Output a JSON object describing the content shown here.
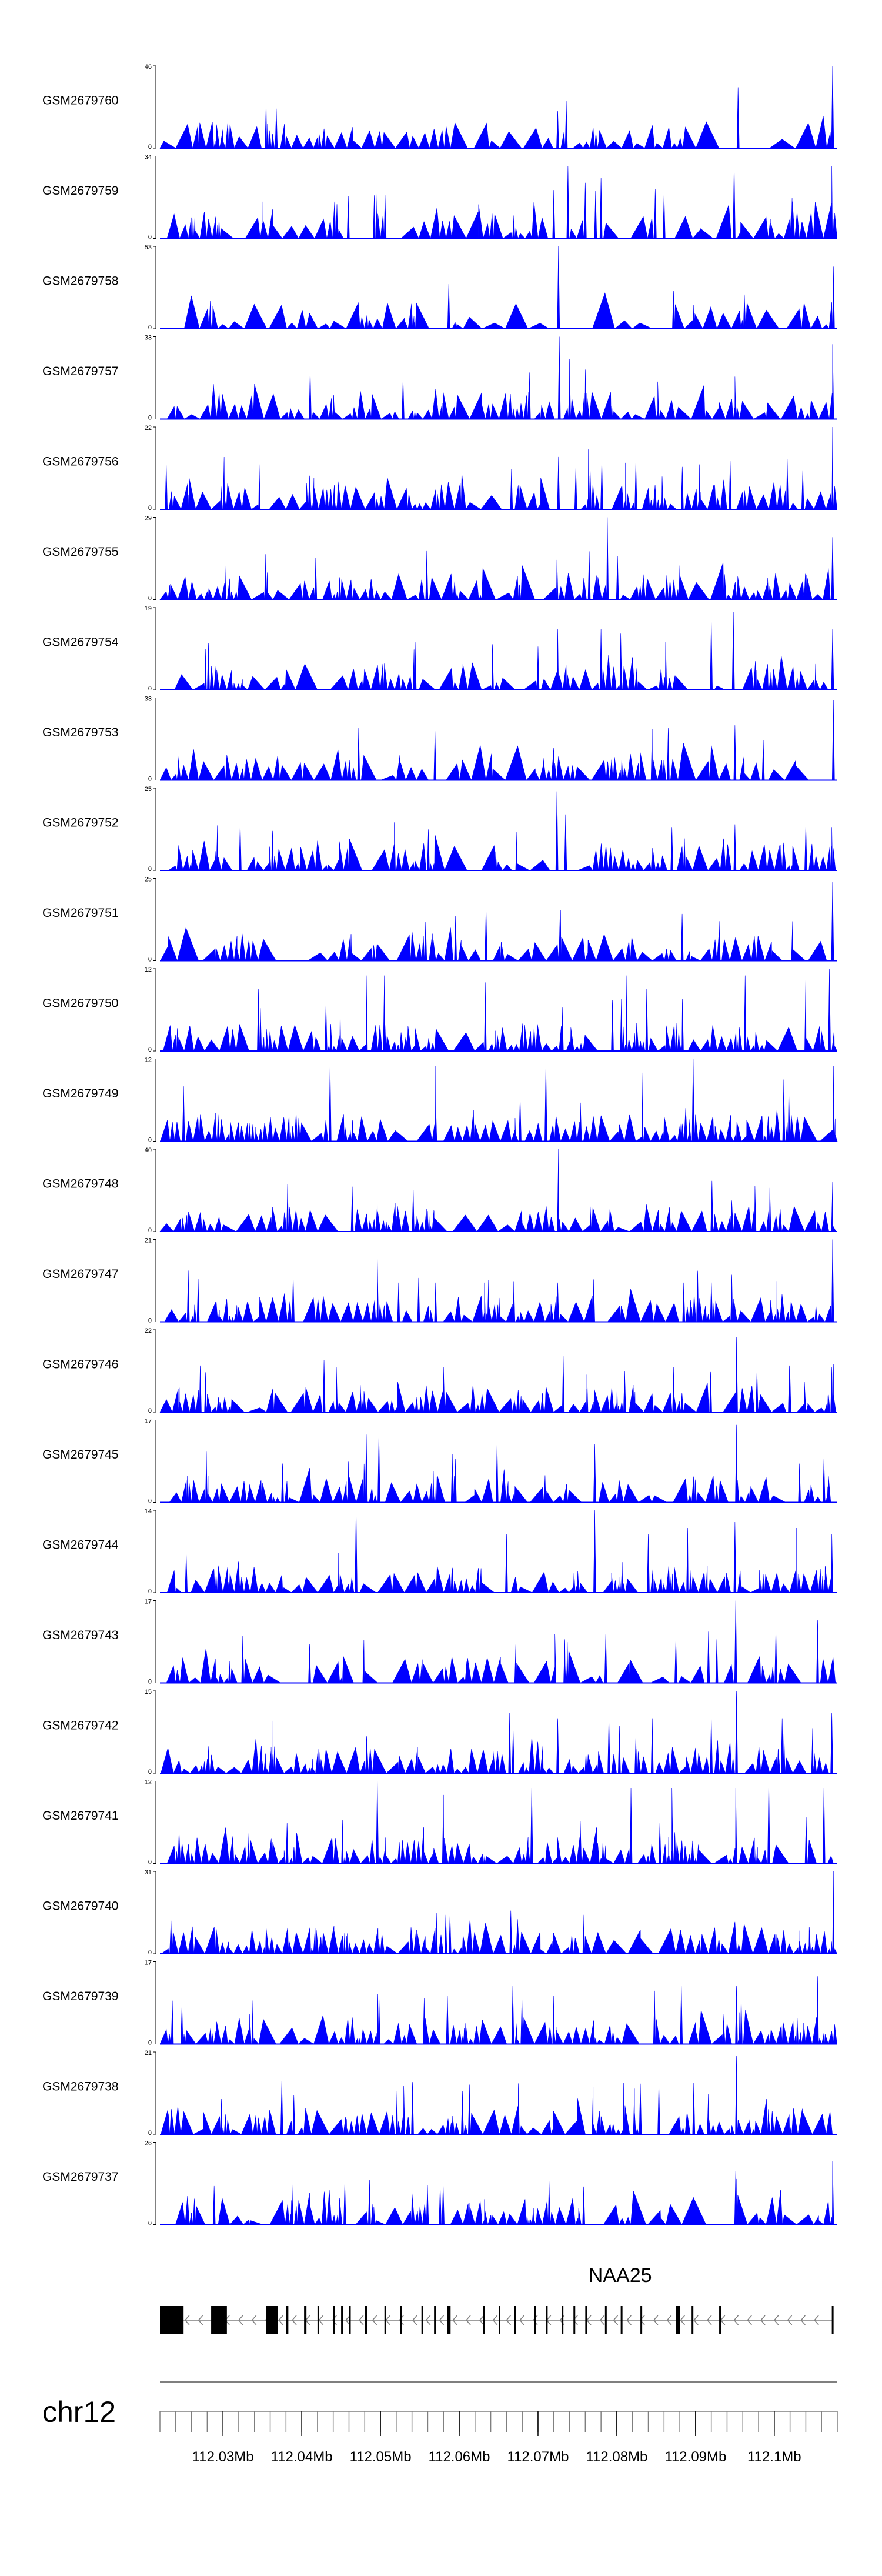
{
  "chart_data": {
    "type": "area",
    "title": "",
    "chromosome": "chr12",
    "xlim_bp": [
      112022000,
      112108000
    ],
    "x_ticks": [
      {
        "pos_bp": 112030000,
        "label": "112.03Mb"
      },
      {
        "pos_bp": 112040000,
        "label": "112.04Mb"
      },
      {
        "pos_bp": 112050000,
        "label": "112.05Mb"
      },
      {
        "pos_bp": 112060000,
        "label": "112.06Mb"
      },
      {
        "pos_bp": 112070000,
        "label": "112.07Mb"
      },
      {
        "pos_bp": 112080000,
        "label": "112.08Mb"
      },
      {
        "pos_bp": 112090000,
        "label": "112.09Mb"
      },
      {
        "pos_bp": 112100000,
        "label": "112.1Mb"
      }
    ],
    "minor_tick_step_bp": 2000,
    "gene": {
      "name": "NAA25",
      "strand": "-",
      "start_bp": 112022000,
      "end_bp": 112107500,
      "exons": [
        [
          112022000,
          112025000
        ],
        [
          112028500,
          112030500
        ],
        [
          112035500,
          112037000
        ],
        [
          112038000,
          112038300
        ],
        [
          112040300,
          112040600
        ],
        [
          112042000,
          112042200
        ],
        [
          112044000,
          112044200
        ],
        [
          112045000,
          112045200
        ],
        [
          112046000,
          112046200
        ],
        [
          112048000,
          112048300
        ],
        [
          112050500,
          112050700
        ],
        [
          112052500,
          112052700
        ],
        [
          112055200,
          112055400
        ],
        [
          112056800,
          112057000
        ],
        [
          112058500,
          112058900
        ],
        [
          112063000,
          112063200
        ],
        [
          112065000,
          112065200
        ],
        [
          112067000,
          112067200
        ],
        [
          112069500,
          112069700
        ],
        [
          112071000,
          112071200
        ],
        [
          112073000,
          112073200
        ],
        [
          112074500,
          112074700
        ],
        [
          112076000,
          112076200
        ],
        [
          112078500,
          112078700
        ],
        [
          112080500,
          112080700
        ],
        [
          112083000,
          112083200
        ],
        [
          112087500,
          112088000
        ],
        [
          112089500,
          112089700
        ],
        [
          112093000,
          112093200
        ],
        [
          112107300,
          112107500
        ]
      ]
    },
    "series": [
      {
        "name": "GSM2679760",
        "ymax": 46,
        "ymin": 0,
        "seed": 11,
        "n_peaks": 70,
        "peaks": [
          [
            112022500,
            4
          ],
          [
            112032000,
            6
          ],
          [
            112034300,
            12
          ],
          [
            112036300,
            8
          ],
          [
            112072500,
            21
          ],
          [
            112073300,
            9
          ],
          [
            112077800,
            10
          ],
          [
            112095400,
            34
          ],
          [
            112101000,
            5
          ],
          [
            112107400,
            46
          ]
        ]
      },
      {
        "name": "GSM2679759",
        "ymax": 34,
        "ymin": 0,
        "seed": 23,
        "n_peaks": 85,
        "peaks": [
          [
            112023800,
            10
          ],
          [
            112029500,
            8
          ],
          [
            112036300,
            12
          ],
          [
            112064500,
            10
          ],
          [
            112072000,
            20
          ],
          [
            112073800,
            30
          ],
          [
            112076000,
            23
          ],
          [
            112078000,
            25
          ],
          [
            112086000,
            18
          ],
          [
            112094900,
            30
          ],
          [
            112105200,
            15
          ],
          [
            112107300,
            30
          ]
        ]
      },
      {
        "name": "GSM2679758",
        "ymax": 53,
        "ymin": 0,
        "seed": 37,
        "n_peaks": 55,
        "peaks": [
          [
            112028400,
            18
          ],
          [
            112041000,
            10
          ],
          [
            112072600,
            53
          ],
          [
            112078500,
            23
          ],
          [
            112093500,
            10
          ],
          [
            112096200,
            22
          ],
          [
            112099000,
            12
          ],
          [
            112107500,
            40
          ]
        ]
      },
      {
        "name": "GSM2679757",
        "ymax": 33,
        "ymin": 0,
        "seed": 41,
        "n_peaks": 95,
        "peaks": [
          [
            112028800,
            14
          ],
          [
            112036400,
            10
          ],
          [
            112057000,
            12
          ],
          [
            112066500,
            10
          ],
          [
            112072700,
            33
          ],
          [
            112074000,
            24
          ],
          [
            112085200,
            15
          ],
          [
            112095000,
            17
          ],
          [
            112107400,
            30
          ]
        ]
      },
      {
        "name": "GSM2679756",
        "ymax": 22,
        "ymin": 0,
        "seed": 53,
        "n_peaks": 110,
        "peaks": [
          [
            112022800,
            12
          ],
          [
            112034600,
            12
          ],
          [
            112041000,
            9
          ],
          [
            112072600,
            14
          ],
          [
            112074800,
            11
          ],
          [
            112076400,
            16
          ],
          [
            112078100,
            13
          ],
          [
            112090500,
            12
          ],
          [
            112094400,
            13
          ],
          [
            112107400,
            22
          ]
        ]
      },
      {
        "name": "GSM2679755",
        "ymax": 29,
        "ymin": 0,
        "seed": 67,
        "n_peaks": 100,
        "peaks": [
          [
            112025200,
            8
          ],
          [
            112052300,
            9
          ],
          [
            112063000,
            11
          ],
          [
            112068000,
            12
          ],
          [
            112072400,
            14
          ],
          [
            112076500,
            17
          ],
          [
            112078800,
            29
          ],
          [
            112088000,
            12
          ],
          [
            112093500,
            13
          ],
          [
            112107400,
            22
          ]
        ]
      },
      {
        "name": "GSM2679754",
        "ymax": 19,
        "ymin": 0,
        "seed": 71,
        "n_peaks": 90,
        "peaks": [
          [
            112054400,
            11
          ],
          [
            112070000,
            10
          ],
          [
            112072500,
            14
          ],
          [
            112078000,
            14
          ],
          [
            112080500,
            13
          ],
          [
            112086200,
            11
          ],
          [
            112092000,
            16
          ],
          [
            112094800,
            18
          ],
          [
            112107400,
            14
          ]
        ]
      },
      {
        "name": "GSM2679753",
        "ymax": 33,
        "ymin": 0,
        "seed": 83,
        "n_peaks": 80,
        "peaks": [
          [
            112022800,
            5
          ],
          [
            112025000,
            6
          ],
          [
            112037500,
            6
          ],
          [
            112060400,
            8
          ],
          [
            112072000,
            13
          ],
          [
            112078400,
            8
          ],
          [
            112092000,
            14
          ],
          [
            112095000,
            22
          ],
          [
            112098600,
            16
          ],
          [
            112107500,
            32
          ]
        ]
      },
      {
        "name": "GSM2679752",
        "ymax": 25,
        "ymin": 0,
        "seed": 97,
        "n_peaks": 95,
        "peaks": [
          [
            112036300,
            12
          ],
          [
            112042000,
            9
          ],
          [
            112056900,
            11
          ],
          [
            112072400,
            24
          ],
          [
            112073500,
            17
          ],
          [
            112087000,
            13
          ],
          [
            112095000,
            14
          ],
          [
            112104000,
            14
          ],
          [
            112107300,
            13
          ]
        ]
      },
      {
        "name": "GSM2679751",
        "ymax": 25,
        "ymin": 0,
        "seed": 101,
        "n_peaks": 75,
        "peaks": [
          [
            112025300,
            10
          ],
          [
            112033800,
            6
          ],
          [
            112054000,
            9
          ],
          [
            112058900,
            10
          ],
          [
            112072800,
            14
          ],
          [
            112078400,
            8
          ],
          [
            112093000,
            12
          ],
          [
            112107400,
            24
          ]
        ]
      },
      {
        "name": "GSM2679750",
        "ymax": 12,
        "ymin": 0,
        "seed": 109,
        "n_peaks": 120,
        "peaks": [
          [
            112034500,
            9
          ],
          [
            112048200,
            11
          ],
          [
            112050500,
            11
          ],
          [
            112063300,
            10
          ],
          [
            112081200,
            11
          ],
          [
            112083800,
            9
          ],
          [
            112096300,
            11
          ],
          [
            112104000,
            11
          ],
          [
            112107000,
            12
          ]
        ]
      },
      {
        "name": "GSM2679749",
        "ymax": 12,
        "ymin": 0,
        "seed": 113,
        "n_peaks": 120,
        "peaks": [
          [
            112025000,
            8
          ],
          [
            112043600,
            11
          ],
          [
            112057000,
            11
          ],
          [
            112071000,
            11
          ],
          [
            112083200,
            10
          ],
          [
            112089700,
            12
          ],
          [
            112101200,
            9
          ],
          [
            112107500,
            11
          ]
        ]
      },
      {
        "name": "GSM2679748",
        "ymax": 40,
        "ymin": 0,
        "seed": 127,
        "n_peaks": 100,
        "peaks": [
          [
            112036300,
            12
          ],
          [
            112043000,
            8
          ],
          [
            112056800,
            10
          ],
          [
            112063700,
            8
          ],
          [
            112072600,
            40
          ],
          [
            112088200,
            10
          ],
          [
            112095000,
            9
          ],
          [
            112107400,
            24
          ]
        ]
      },
      {
        "name": "GSM2679747",
        "ymax": 21,
        "ymin": 0,
        "seed": 131,
        "n_peaks": 110,
        "peaks": [
          [
            112049600,
            16
          ],
          [
            112052300,
            10
          ],
          [
            112057000,
            10
          ],
          [
            112063200,
            10
          ],
          [
            112072500,
            10
          ],
          [
            112088500,
            10
          ],
          [
            112094600,
            12
          ],
          [
            112107400,
            21
          ]
        ]
      },
      {
        "name": "GSM2679746",
        "ymax": 22,
        "ymin": 0,
        "seed": 139,
        "n_peaks": 115,
        "peaks": [
          [
            112044400,
            12
          ],
          [
            112058000,
            12
          ],
          [
            112073200,
            15
          ],
          [
            112076200,
            10
          ],
          [
            112081000,
            11
          ],
          [
            112095200,
            20
          ],
          [
            112097800,
            11
          ],
          [
            112107300,
            12
          ]
        ]
      },
      {
        "name": "GSM2679745",
        "ymax": 17,
        "ymin": 0,
        "seed": 149,
        "n_peaks": 95,
        "peaks": [
          [
            112048200,
            14
          ],
          [
            112049800,
            14
          ],
          [
            112059500,
            9
          ],
          [
            112064800,
            12
          ],
          [
            112077200,
            12
          ],
          [
            112095200,
            16
          ],
          [
            112103200,
            8
          ],
          [
            112106300,
            9
          ]
        ]
      },
      {
        "name": "GSM2679744",
        "ymax": 14,
        "ymin": 0,
        "seed": 151,
        "n_peaks": 115,
        "peaks": [
          [
            112046900,
            14
          ],
          [
            112066000,
            10
          ],
          [
            112077200,
            14
          ],
          [
            112084000,
            10
          ],
          [
            112089000,
            11
          ],
          [
            112095000,
            12
          ],
          [
            112102800,
            11
          ],
          [
            112107300,
            10
          ]
        ]
      },
      {
        "name": "GSM2679743",
        "ymax": 17,
        "ymin": 0,
        "seed": 157,
        "n_peaks": 70,
        "peaks": [
          [
            112041000,
            8
          ],
          [
            112073400,
            9
          ],
          [
            112078600,
            10
          ],
          [
            112087500,
            9
          ],
          [
            112092700,
            9
          ],
          [
            112095100,
            17
          ],
          [
            112100200,
            11
          ],
          [
            112105500,
            13
          ]
        ]
      },
      {
        "name": "GSM2679742",
        "ymax": 15,
        "ymin": 0,
        "seed": 163,
        "n_peaks": 115,
        "peaks": [
          [
            112066400,
            11
          ],
          [
            112072500,
            10
          ],
          [
            112079000,
            10
          ],
          [
            112084500,
            10
          ],
          [
            112092000,
            10
          ],
          [
            112095200,
            15
          ],
          [
            112101000,
            10
          ],
          [
            112107300,
            11
          ]
        ]
      },
      {
        "name": "GSM2679741",
        "ymax": 12,
        "ymin": 0,
        "seed": 167,
        "n_peaks": 120,
        "peaks": [
          [
            112049600,
            12
          ],
          [
            112058000,
            10
          ],
          [
            112069200,
            11
          ],
          [
            112081800,
            11
          ],
          [
            112087000,
            11
          ],
          [
            112095100,
            11
          ],
          [
            112099300,
            12
          ],
          [
            112106300,
            11
          ]
        ]
      },
      {
        "name": "GSM2679740",
        "ymax": 31,
        "ymin": 0,
        "seed": 173,
        "n_peaks": 110,
        "peaks": [
          [
            112025000,
            8
          ],
          [
            112039300,
            8
          ],
          [
            112054600,
            9
          ],
          [
            112067400,
            13
          ],
          [
            112083000,
            9
          ],
          [
            112095000,
            12
          ],
          [
            112101200,
            9
          ],
          [
            112107500,
            31
          ]
        ]
      },
      {
        "name": "GSM2679739",
        "ymax": 17,
        "ymin": 0,
        "seed": 179,
        "n_peaks": 110,
        "peaks": [
          [
            112033800,
            9
          ],
          [
            112058500,
            10
          ],
          [
            112066800,
            12
          ],
          [
            112072000,
            10
          ],
          [
            112084800,
            11
          ],
          [
            112088200,
            12
          ],
          [
            112095200,
            12
          ],
          [
            112105500,
            14
          ]
        ]
      },
      {
        "name": "GSM2679738",
        "ymax": 21,
        "ymin": 0,
        "seed": 181,
        "n_peaks": 110,
        "peaks": [
          [
            112029800,
            9
          ],
          [
            112039000,
            10
          ],
          [
            112052100,
            11
          ],
          [
            112060400,
            11
          ],
          [
            112067500,
            13
          ],
          [
            112077000,
            12
          ],
          [
            112095200,
            20
          ],
          [
            112099000,
            9
          ]
        ]
      },
      {
        "name": "GSM2679737",
        "ymax": 26,
        "ymin": 0,
        "seed": 191,
        "n_peaks": 90,
        "peaks": [
          [
            112025500,
            9
          ],
          [
            112041000,
            10
          ],
          [
            112043500,
            11
          ],
          [
            112054000,
            10
          ],
          [
            112063200,
            8
          ],
          [
            112075800,
            12
          ],
          [
            112095100,
            17
          ],
          [
            112100800,
            11
          ],
          [
            112107400,
            20
          ]
        ]
      }
    ]
  },
  "colors": {
    "signal": "#0000ff",
    "axis": "#000000",
    "gene": "#000000",
    "intron_arrow": "#7f7f7f",
    "ruler": "#7f7f7f",
    "background": "#ffffff"
  }
}
